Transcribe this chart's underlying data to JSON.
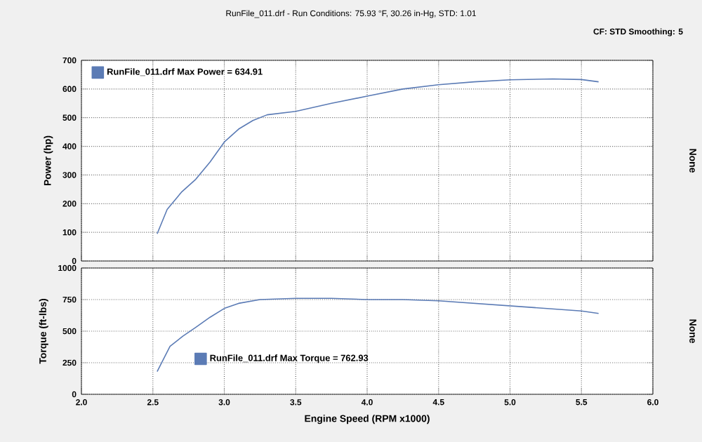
{
  "chart_data": [
    {
      "type": "line",
      "annotations": [
        "RunFile_011.drf - Run Conditions: 75.93 °F, 30.26 in-Hg, STD: 1.01",
        "CF: STD  Smoothing: 5"
      ],
      "ylabel": "Power (hp)",
      "y2label": "None",
      "xlim": [
        2.0,
        6.0
      ],
      "xticks": [
        2.0,
        2.5,
        3.0,
        3.5,
        4.0,
        4.5,
        5.0,
        5.5,
        6.0
      ],
      "ylim": [
        0,
        700
      ],
      "yticks": [
        0,
        100,
        200,
        300,
        400,
        500,
        600,
        700
      ],
      "tick_labels": "y",
      "grid": true,
      "legend": "top left",
      "series": [
        {
          "name": "RunFile_011.drf Max Power = 634.91",
          "color": "#5b7bb5",
          "x": [
            2.53,
            2.6,
            2.7,
            2.8,
            2.9,
            3.0,
            3.1,
            3.2,
            3.3,
            3.5,
            3.75,
            4.0,
            4.25,
            4.5,
            4.75,
            5.0,
            5.3,
            5.5,
            5.62
          ],
          "values": [
            95,
            180,
            240,
            285,
            345,
            415,
            460,
            490,
            510,
            522,
            550,
            575,
            600,
            615,
            625,
            632,
            635,
            633,
            625
          ]
        }
      ]
    },
    {
      "type": "line",
      "xlabel": "Engine Speed (RPM x1000)",
      "ylabel": "Torque (ft-lbs)",
      "y2label": "None",
      "xlim": [
        2.0,
        6.0
      ],
      "xticks": [
        {
          "value": 2,
          "label": "2.0"
        },
        {
          "value": 2.5,
          "label": "2.5"
        },
        {
          "value": 3,
          "label": "3.0"
        },
        {
          "value": 3.5,
          "label": "3.5"
        },
        {
          "value": 4,
          "label": "4.0"
        },
        {
          "value": 4.5,
          "label": "4.5"
        },
        {
          "value": 5,
          "label": "5.0"
        },
        {
          "value": 5.5,
          "label": "5.5"
        },
        {
          "value": 6,
          "label": "6.0"
        }
      ],
      "ylim": [
        0,
        1000
      ],
      "yticks": [
        0,
        250,
        500,
        750,
        1000
      ],
      "grid": true,
      "legend": "bottom left",
      "series": [
        {
          "name": "RunFile_011.drf Max Torque = 762.93",
          "color": "#5b7bb5",
          "x": [
            2.53,
            2.62,
            2.71,
            2.8,
            2.9,
            3.0,
            3.1,
            3.25,
            3.5,
            3.75,
            4.0,
            4.25,
            4.5,
            4.75,
            5.0,
            5.25,
            5.5,
            5.62
          ],
          "values": [
            180,
            380,
            460,
            530,
            610,
            680,
            720,
            750,
            760,
            760,
            750,
            750,
            740,
            720,
            700,
            680,
            660,
            640
          ]
        }
      ]
    }
  ]
}
